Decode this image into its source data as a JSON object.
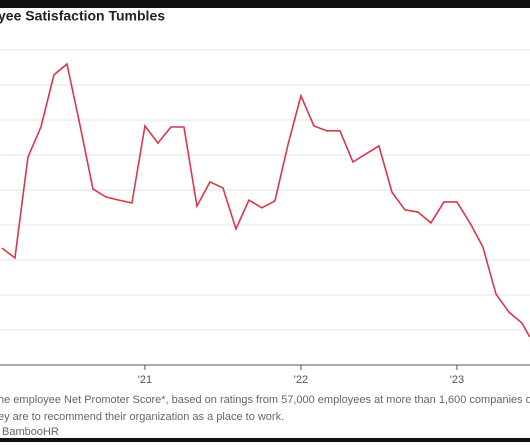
{
  "chart_data": {
    "type": "line",
    "title": "yee Satisfaction Tumbles",
    "notes": [
      "he employee Net Promoter Score*, based on ratings from 57,000 employees at more than 1,600 companies of h",
      "ey are to recommend their organization as a place to work.",
      "BambooHR"
    ],
    "x": [
      1,
      2,
      3,
      4,
      5,
      6,
      7,
      8,
      9,
      10,
      11,
      12,
      13,
      14,
      15,
      16,
      17,
      18,
      19,
      20,
      21,
      22,
      23,
      24,
      25,
      26,
      27,
      28,
      29,
      30,
      31,
      32,
      33,
      34,
      35,
      36,
      37,
      38,
      39,
      40,
      41,
      41.6
    ],
    "series": [
      {
        "color": "#d9374a",
        "values": [
          3.34,
          3.06,
          5.94,
          6.8,
          8.29,
          8.6,
          6.86,
          5.03,
          4.8,
          4.71,
          4.63,
          6.83,
          6.34,
          6.8,
          6.8,
          4.54,
          5.23,
          5.06,
          3.89,
          4.71,
          4.49,
          4.69,
          6.29,
          7.69,
          6.83,
          6.69,
          6.69,
          5.8,
          6.03,
          6.26,
          4.94,
          4.43,
          4.37,
          4.06,
          4.66,
          4.66,
          4.06,
          3.37,
          2.03,
          1.51,
          1.2,
          0.8
        ]
      }
    ],
    "xlim": [
      0.85,
      41.62
    ],
    "xticks": [
      {
        "value": 12,
        "label": "'21"
      },
      {
        "value": 24,
        "label": "'22"
      },
      {
        "value": 36,
        "label": "'23"
      }
    ],
    "ylim": [
      0,
      9
    ],
    "yticks": [
      0,
      1,
      2,
      3,
      4,
      5,
      6,
      7,
      8,
      9
    ],
    "grid": true
  }
}
